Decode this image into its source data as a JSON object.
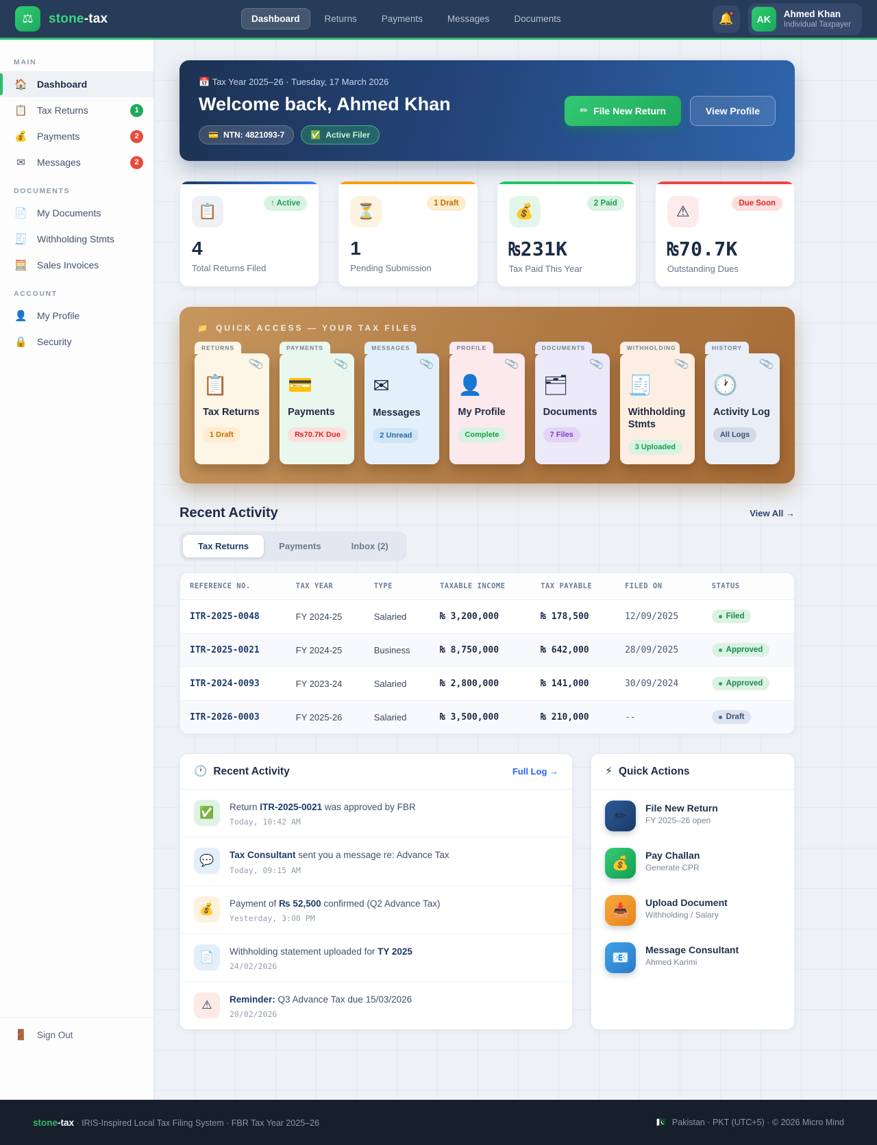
{
  "colors": {
    "brand_green": "#2ebd6b",
    "navbar_bg": "#263c58",
    "footer_bg": "#171e2c",
    "page_bg": "#eef1f6",
    "desk_brown": "#b07a45",
    "accent_blue": "#3b82f6",
    "accent_orange": "#f59e0b",
    "accent_green": "#22c55e",
    "accent_red": "#ef4444",
    "badge_red": "#e74c3c",
    "status_green": "#188a4a",
    "link_blue": "#2563eb"
  },
  "navbar": {
    "logo_icon": "⚖",
    "brand_green": "stone",
    "brand_rest": "-tax",
    "items": [
      {
        "label": "Dashboard"
      },
      {
        "label": "Returns"
      },
      {
        "label": "Payments"
      },
      {
        "label": "Messages"
      },
      {
        "label": "Documents"
      }
    ],
    "bell_icon": "🔔",
    "user": {
      "initials": "AK",
      "name": "Ahmed Khan",
      "role": "Individual Taxpayer"
    }
  },
  "sidebar": {
    "section_main": "MAIN",
    "section_documents": "DOCUMENTS",
    "section_account": "ACCOUNT",
    "main_items": [
      {
        "icon": "🏠",
        "label": "Dashboard"
      },
      {
        "icon": "📋",
        "label": "Tax Returns",
        "badge": "1"
      },
      {
        "icon": "💰",
        "label": "Payments",
        "badge": "2"
      },
      {
        "icon": "✉",
        "label": "Messages",
        "badge": "2"
      }
    ],
    "document_items": [
      {
        "icon": "📄",
        "label": "My Documents"
      },
      {
        "icon": "🧾",
        "label": "Withholding Stmts"
      },
      {
        "icon": "🧮",
        "label": "Sales Invoices"
      }
    ],
    "account_items": [
      {
        "icon": "👤",
        "label": "My Profile"
      },
      {
        "icon": "🔒",
        "label": "Security"
      }
    ],
    "sign_out": {
      "icon": "🚪",
      "label": "Sign Out"
    }
  },
  "hero": {
    "date_icon": "📅",
    "date_line": "Tax Year 2025–26 · Tuesday, 17 March 2026",
    "title": "Welcome back, Ahmed Khan",
    "ntn_icon": "💳",
    "ntn_text": "NTN: 4821093-7",
    "filer_icon": "✅",
    "filer_text": "Active Filer",
    "file_button_icon": "✏",
    "file_button": "File New Return",
    "profile_button": "View Profile"
  },
  "stats": [
    {
      "icon": "📋",
      "badge": "↑ Active",
      "value": "4",
      "label": "Total Returns Filed"
    },
    {
      "icon": "⏳",
      "badge": "1 Draft",
      "value": "1",
      "label": "Pending Submission"
    },
    {
      "icon": "💰",
      "badge": "2 Paid",
      "value": "₨231K",
      "label": "Tax Paid This Year"
    },
    {
      "icon": "⚠",
      "badge": "Due Soon",
      "value": "₨70.7K",
      "label": "Outstanding Dues"
    }
  ],
  "quick_access": {
    "title_icon": "📁",
    "title": "QUICK ACCESS — YOUR TAX FILES",
    "clip_icon": "📎",
    "cards": [
      {
        "tab": "RETURNS",
        "icon": "📋",
        "title": "Tax Returns",
        "badge": "1 Draft"
      },
      {
        "tab": "PAYMENTS",
        "icon": "💳",
        "title": "Payments",
        "badge": "₨70.7K Due"
      },
      {
        "tab": "MESSAGES",
        "icon": "✉",
        "title": "Messages",
        "badge": "2 Unread"
      },
      {
        "tab": "PROFILE",
        "icon": "👤",
        "title": "My Profile",
        "badge": "Complete"
      },
      {
        "tab": "DOCUMENTS",
        "icon": "🗂",
        "title": "Documents",
        "badge": "7 Files"
      },
      {
        "tab": "WITHHOLDING",
        "icon": "🧾",
        "title": "Withholding Stmts",
        "badge": "3 Uploaded"
      },
      {
        "tab": "HISTORY",
        "icon": "🕐",
        "title": "Activity Log",
        "badge": "All Logs"
      }
    ]
  },
  "recent": {
    "title": "Recent Activity",
    "view_all": "View All →",
    "tabs": [
      {
        "label": "Tax Returns"
      },
      {
        "label": "Payments"
      },
      {
        "label": "Inbox (2)"
      }
    ]
  },
  "table": {
    "headers": [
      "REFERENCE NO.",
      "TAX YEAR",
      "TYPE",
      "TAXABLE INCOME",
      "TAX PAYABLE",
      "FILED ON",
      "STATUS"
    ],
    "rows": [
      {
        "ref": "ITR-2025-0048",
        "year": "FY 2024-25",
        "type": "Salaried",
        "income": "₨ 3,200,000",
        "payable": "₨ 178,500",
        "filed": "12/09/2025",
        "status": "Filed"
      },
      {
        "ref": "ITR-2025-0021",
        "year": "FY 2024-25",
        "type": "Business",
        "income": "₨ 8,750,000",
        "payable": "₨ 642,000",
        "filed": "28/09/2025",
        "status": "Approved"
      },
      {
        "ref": "ITR-2024-0093",
        "year": "FY 2023-24",
        "type": "Salaried",
        "income": "₨ 2,800,000",
        "payable": "₨ 141,000",
        "filed": "30/09/2024",
        "status": "Approved"
      },
      {
        "ref": "ITR-2026-0003",
        "year": "FY 2025-26",
        "type": "Salaried",
        "income": "₨ 3,500,000",
        "payable": "₨ 210,000",
        "filed": "--",
        "status": "Draft"
      }
    ]
  },
  "activity_feed": {
    "title_icon": "🕐",
    "title": "Recent Activity",
    "link": "Full Log →",
    "items": [
      {
        "icon": "✅",
        "pre": "Return ",
        "bold": "ITR-2025-0021",
        "post": " was approved by FBR",
        "time": "Today, 10:42 AM"
      },
      {
        "icon": "💬",
        "pre": "",
        "bold": "Tax Consultant",
        "post": " sent you a message re: Advance Tax",
        "time": "Today, 09:15 AM"
      },
      {
        "icon": "💰",
        "pre": "Payment of ",
        "bold": "₨ 52,500",
        "post": " confirmed (Q2 Advance Tax)",
        "time": "Yesterday, 3:00 PM"
      },
      {
        "icon": "📄",
        "pre": "Withholding statement uploaded for ",
        "bold": "TY 2025",
        "post": "",
        "time": "24/02/2026"
      },
      {
        "icon": "⚠",
        "pre": "",
        "bold": "Reminder:",
        "post": " Q3 Advance Tax due 15/03/2026",
        "time": "20/02/2026"
      }
    ]
  },
  "quick_actions": {
    "title_icon": "⚡",
    "title": "Quick Actions",
    "items": [
      {
        "icon": "✏",
        "title": "File New Return",
        "subtitle": "FY 2025–26 open"
      },
      {
        "icon": "💰",
        "title": "Pay Challan",
        "subtitle": "Generate CPR"
      },
      {
        "icon": "📥",
        "title": "Upload Document",
        "subtitle": "Withholding / Salary"
      },
      {
        "icon": "📧",
        "title": "Message Consultant",
        "subtitle": "Ahmed Karimi"
      }
    ]
  },
  "footer": {
    "brand_green": "stone",
    "brand_rest": "-tax",
    "left_text": "· IRIS-Inspired Local Tax Filing System · FBR Tax Year 2025–26",
    "flag_icon": "🇵🇰",
    "right_text": "Pakistan · PKT (UTC+5) · © 2026 Micro Mind"
  }
}
